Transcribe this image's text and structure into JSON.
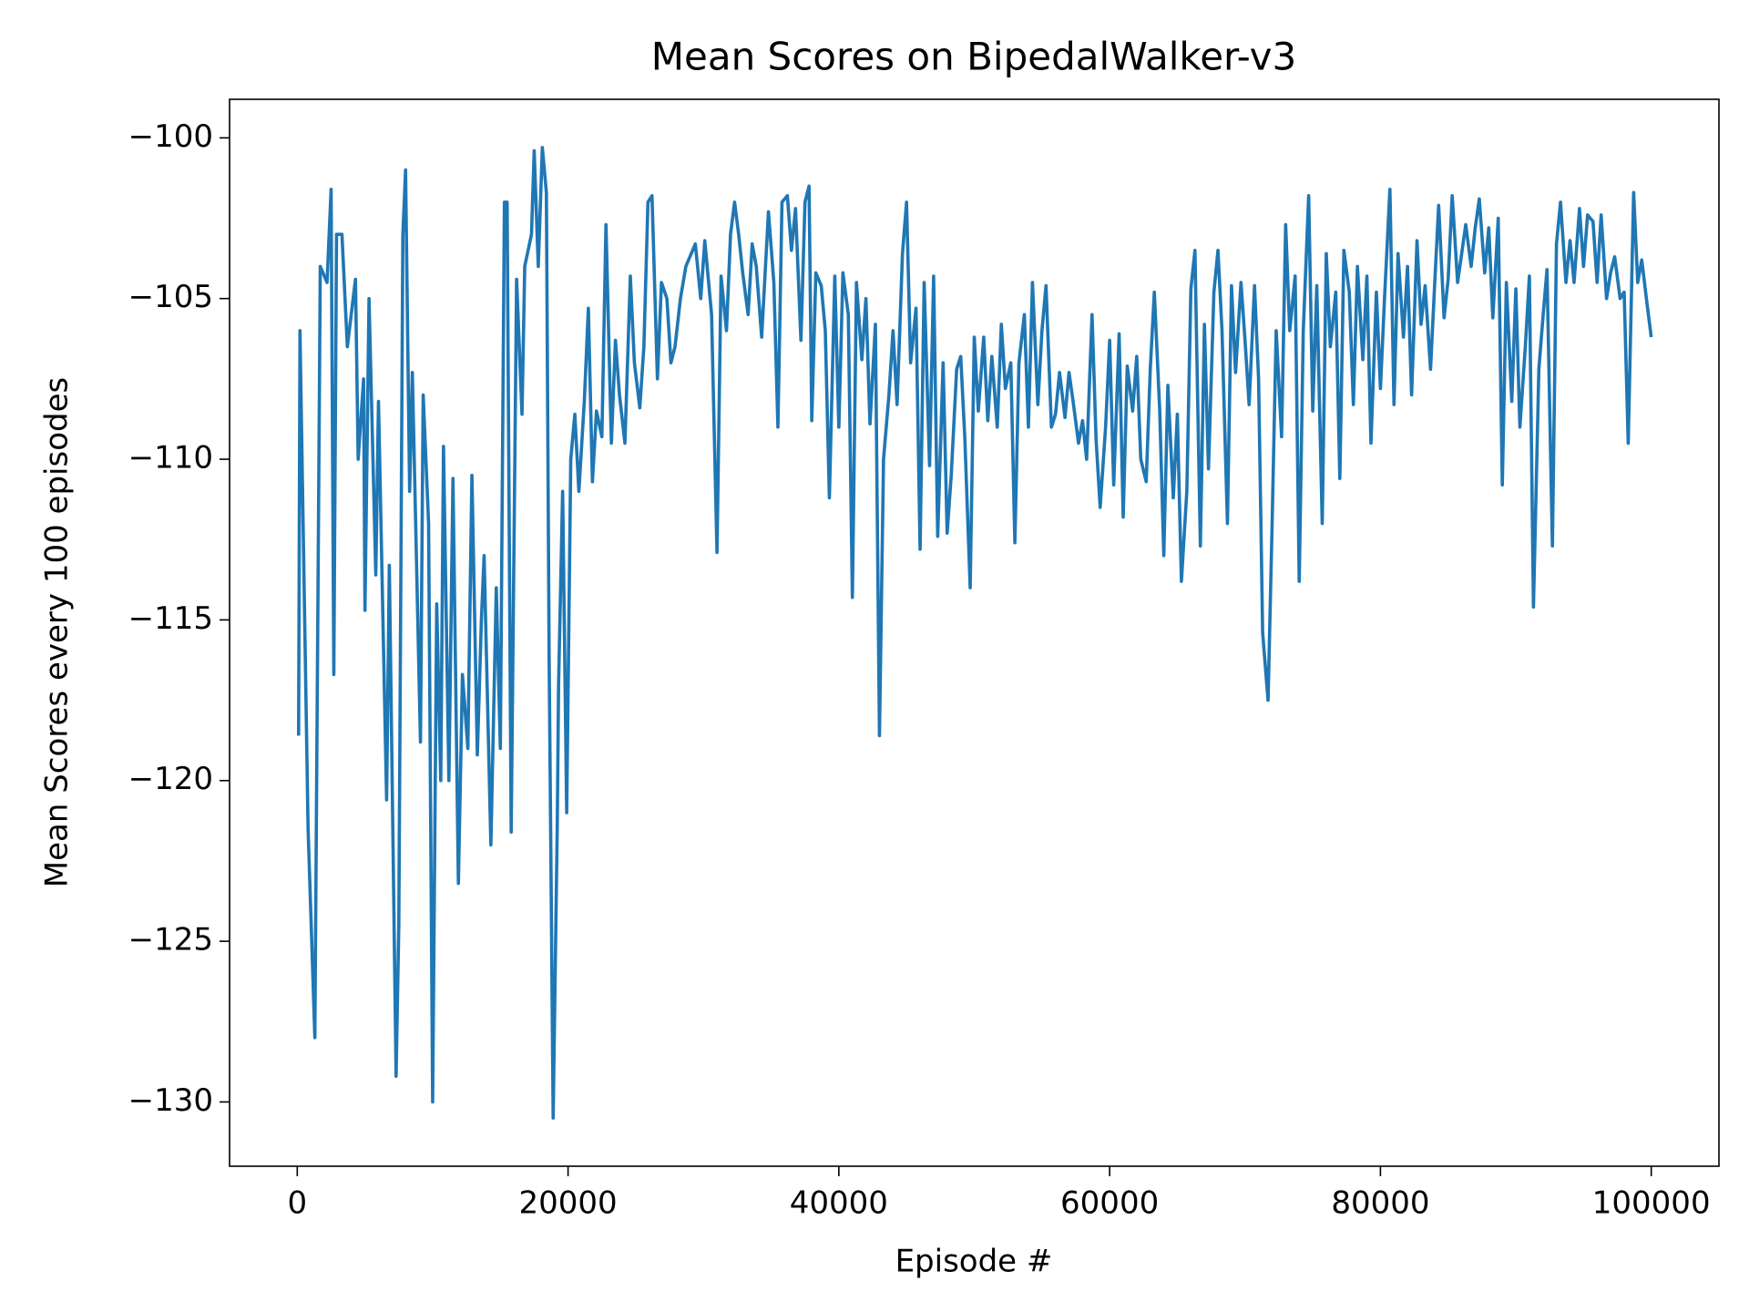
{
  "chart_data": {
    "type": "line",
    "title": "Mean Scores on BipedalWalker-v3",
    "xlabel": "Episode #",
    "ylabel": "Mean Scores every 100 episodes",
    "color": "#1f77b4",
    "grid": false,
    "xlim": [
      -5000,
      105000
    ],
    "ylim": [
      -132,
      -98.8
    ],
    "xticks": [
      0,
      20000,
      40000,
      60000,
      80000,
      100000
    ],
    "yticks": [
      {
        "value": -130,
        "label": "−130"
      },
      {
        "value": -125,
        "label": "−125"
      },
      {
        "value": -120,
        "label": "−120"
      },
      {
        "value": -115,
        "label": "−115"
      },
      {
        "value": -110,
        "label": "−110"
      },
      {
        "value": -105,
        "label": "−105"
      },
      {
        "value": -100,
        "label": "−100"
      }
    ],
    "x": [
      100,
      200,
      800,
      1300,
      1700,
      2200,
      2500,
      2700,
      2900,
      3300,
      3700,
      4300,
      4500,
      4900,
      5000,
      5300,
      5800,
      6000,
      6600,
      6800,
      7300,
      7500,
      7800,
      8000,
      8300,
      8500,
      9100,
      9300,
      9700,
      10000,
      10300,
      10600,
      10800,
      11200,
      11500,
      11900,
      12200,
      12600,
      12900,
      13300,
      13600,
      13800,
      14300,
      14700,
      15000,
      15300,
      15500,
      15800,
      16200,
      16600,
      16800,
      17300,
      17500,
      17800,
      18100,
      18400,
      18600,
      18900,
      19200,
      19300,
      19600,
      19900,
      20200,
      20500,
      20800,
      21200,
      21500,
      21800,
      22100,
      22500,
      22800,
      23200,
      23500,
      23800,
      24200,
      24600,
      24900,
      25300,
      25600,
      25900,
      26200,
      26600,
      26900,
      27300,
      27600,
      27900,
      28300,
      28700,
      29100,
      29400,
      29800,
      30100,
      30600,
      31000,
      31300,
      31700,
      32000,
      32300,
      32600,
      32900,
      33300,
      33600,
      33900,
      34300,
      34800,
      35200,
      35500,
      35800,
      36200,
      36500,
      36800,
      37200,
      37500,
      37800,
      38000,
      38300,
      38700,
      39000,
      39300,
      39700,
      40000,
      40300,
      40700,
      41000,
      41300,
      41700,
      42000,
      42300,
      42700,
      43000,
      43300,
      43700,
      44000,
      44300,
      44700,
      45000,
      45300,
      45700,
      46000,
      46300,
      46700,
      47000,
      47300,
      47700,
      48000,
      48300,
      48700,
      49000,
      49300,
      49700,
      50000,
      50300,
      50700,
      51000,
      51300,
      51700,
      52000,
      52300,
      52700,
      53000,
      53300,
      53700,
      54000,
      54300,
      54700,
      55000,
      55300,
      55700,
      56000,
      56300,
      56700,
      57000,
      57300,
      57700,
      58000,
      58300,
      58700,
      59000,
      59300,
      59700,
      60000,
      60300,
      60700,
      61000,
      61300,
      61700,
      62000,
      62300,
      62700,
      63000,
      63300,
      63700,
      64000,
      64300,
      64700,
      65000,
      65300,
      65700,
      66000,
      66300,
      66700,
      67000,
      67300,
      67700,
      68000,
      68300,
      68700,
      69000,
      69300,
      69700,
      70000,
      70300,
      70700,
      71000,
      71300,
      71700,
      72000,
      72300,
      72700,
      73000,
      73300,
      73700,
      74000,
      74300,
      74700,
      75000,
      75300,
      75700,
      76000,
      76300,
      76700,
      77000,
      77300,
      77700,
      78000,
      78300,
      78700,
      79000,
      79300,
      79700,
      80000,
      80300,
      80700,
      81000,
      81300,
      81700,
      82000,
      82300,
      82700,
      83000,
      83300,
      83700,
      84000,
      84300,
      84700,
      85000,
      85300,
      85700,
      86000,
      86300,
      86700,
      87000,
      87300,
      87700,
      88000,
      88300,
      88700,
      89000,
      89300,
      89700,
      90000,
      90300,
      90700,
      91000,
      91300,
      91700,
      92000,
      92300,
      92700,
      93000,
      93300,
      93700,
      94000,
      94300,
      94700,
      95000,
      95300,
      95700,
      96000,
      96300,
      96700,
      97000,
      97300,
      97700,
      98000,
      98300,
      98700,
      99000,
      99300,
      99700,
      100000
    ],
    "values": [
      -118.6,
      -106,
      -121.5,
      -128,
      -104,
      -104.5,
      -101.6,
      -116.7,
      -103,
      -103,
      -106.5,
      -104.4,
      -110,
      -107.5,
      -114.7,
      -105,
      -113.6,
      -108.2,
      -120.6,
      -113.3,
      -129.2,
      -124.5,
      -103,
      -101,
      -111,
      -107.3,
      -118.8,
      -108,
      -112,
      -130,
      -114.5,
      -120,
      -109.6,
      -120,
      -110.6,
      -123.2,
      -116.7,
      -119,
      -110.5,
      -119.2,
      -115,
      -113,
      -122,
      -114,
      -119,
      -102,
      -102,
      -121.6,
      -104.4,
      -108.6,
      -104,
      -103,
      -100.4,
      -104,
      -100.3,
      -101.7,
      -116,
      -130.5,
      -121.5,
      -117,
      -111,
      -121,
      -110,
      -108.6,
      -111,
      -108.2,
      -105.3,
      -110.7,
      -108.5,
      -109.3,
      -102.7,
      -109.5,
      -106.3,
      -108,
      -109.5,
      -104.3,
      -107,
      -108.4,
      -106.5,
      -102,
      -101.8,
      -107.5,
      -104.5,
      -105,
      -107,
      -106.5,
      -105,
      -104,
      -103.6,
      -103.3,
      -105,
      -103.2,
      -105.5,
      -112.9,
      -104.3,
      -106,
      -103,
      -102,
      -103,
      -104.2,
      -105.5,
      -103.3,
      -104,
      -106.2,
      -102.3,
      -104.5,
      -109,
      -102,
      -101.8,
      -103.5,
      -102.2,
      -106.3,
      -102,
      -101.5,
      -108.8,
      -104.2,
      -104.6,
      -106,
      -111.2,
      -104.3,
      -109,
      -104.2,
      -105.5,
      -114.3,
      -104.5,
      -106.9,
      -105,
      -108.9,
      -105.8,
      -118.6,
      -110,
      -108,
      -106,
      -108.3,
      -103.6,
      -102,
      -107,
      -105.3,
      -112.8,
      -104.5,
      -110.2,
      -104.3,
      -112.4,
      -107,
      -112.3,
      -110.5,
      -107.2,
      -106.8,
      -109.3,
      -114,
      -106.2,
      -108.5,
      -106.2,
      -108.8,
      -106.8,
      -109,
      -105.8,
      -107.8,
      -107,
      -112.6,
      -107,
      -105.5,
      -109,
      -104.5,
      -108.3,
      -106,
      -104.6,
      -109,
      -108.6,
      -107.3,
      -108.7,
      -107.3,
      -108.2,
      -109.5,
      -108.8,
      -110,
      -105.5,
      -109.4,
      -111.5,
      -109,
      -106.3,
      -110.8,
      -106.1,
      -111.8,
      -107.1,
      -108.5,
      -106.8,
      -110,
      -110.7,
      -107.2,
      -104.8,
      -108.5,
      -113,
      -107.7,
      -111.2,
      -108.6,
      -113.8,
      -111,
      -104.7,
      -103.5,
      -112.7,
      -105.8,
      -110.3,
      -104.8,
      -103.5,
      -106,
      -112,
      -104.6,
      -107.3,
      -104.5,
      -106.3,
      -108.3,
      -104.6,
      -107.5,
      -115.4,
      -117.5,
      -112,
      -106,
      -109.3,
      -102.7,
      -106,
      -104.3,
      -113.8,
      -106,
      -101.8,
      -108.5,
      -104.6,
      -112,
      -103.6,
      -106.5,
      -104.8,
      -110.6,
      -103.5,
      -104.8,
      -108.3,
      -104,
      -106.9,
      -104.3,
      -109.5,
      -104.8,
      -107.8,
      -105,
      -101.6,
      -108.3,
      -103.6,
      -106.2,
      -104,
      -108,
      -103.2,
      -105.8,
      -104.6,
      -107.2,
      -104.6,
      -102.1,
      -105.6,
      -104.4,
      -101.8,
      -104.5,
      -103.6,
      -102.7,
      -104,
      -102.8,
      -101.9,
      -104.2,
      -102.8,
      -105.6,
      -102.5,
      -110.8,
      -104.5,
      -108.2,
      -104.7,
      -109,
      -106.5,
      -104.3,
      -114.6,
      -107.2,
      -105.6,
      -104.1,
      -112.7,
      -103.3,
      -102,
      -104.5,
      -103.2,
      -104.5,
      -102.2,
      -104,
      -102.4,
      -102.6,
      -104.5,
      -102.4,
      -105,
      -104.2,
      -103.7,
      -105,
      -104.8,
      -109.5,
      -101.7,
      -104.5,
      -103.8,
      -105.2,
      -106.2
    ]
  }
}
